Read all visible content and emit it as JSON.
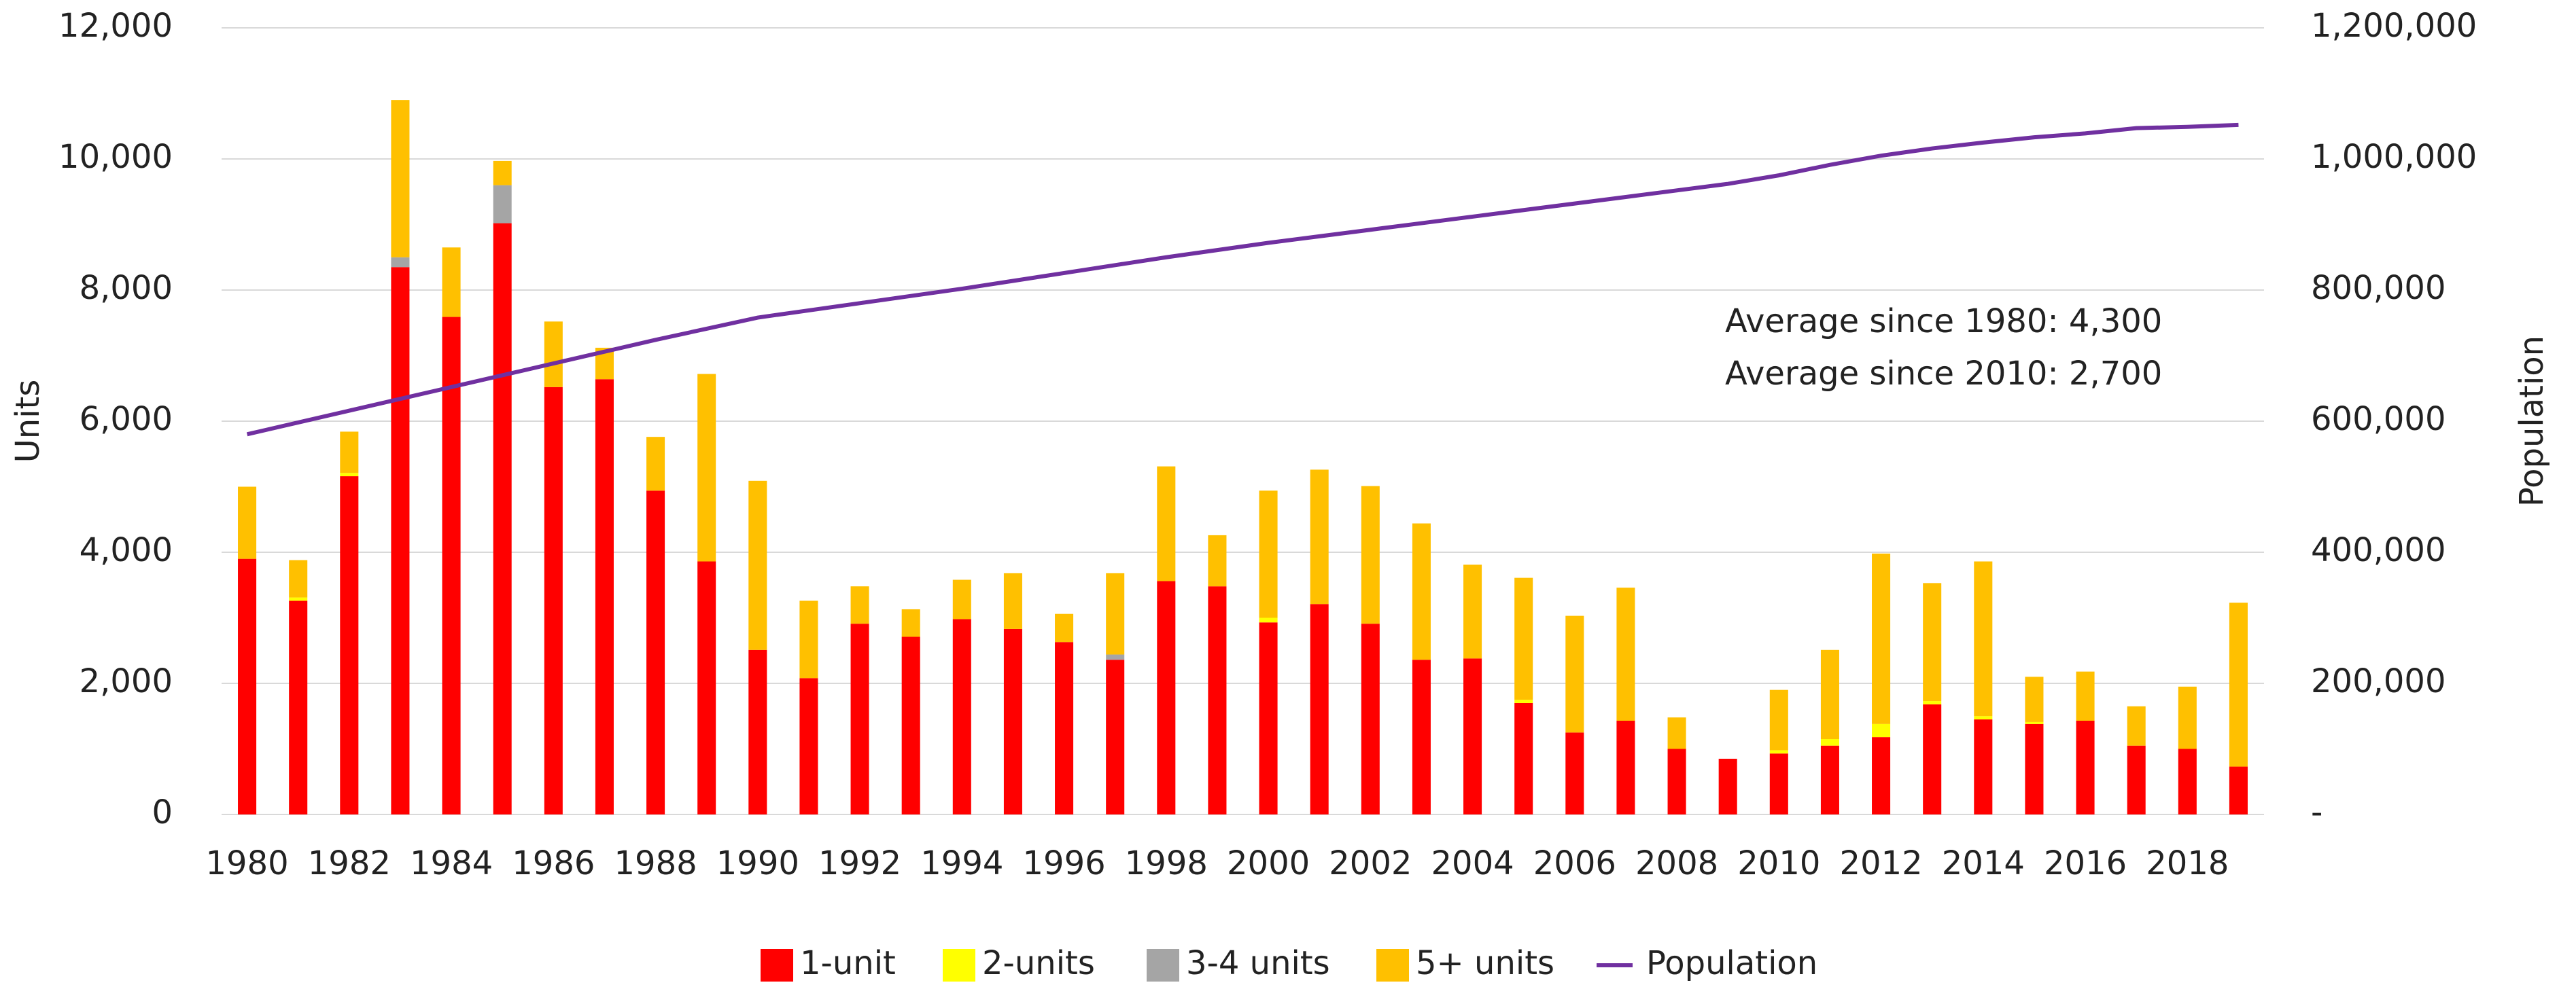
{
  "chart_data": {
    "type": "bar",
    "categories": [
      "1980",
      null,
      "1982",
      null,
      "1984",
      null,
      "1986",
      null,
      "1988",
      null,
      "1990",
      null,
      "1992",
      null,
      "1994",
      null,
      "1996",
      null,
      "1998",
      null,
      "2000",
      null,
      "2002",
      null,
      "2004",
      null,
      "2006",
      null,
      "2008",
      null,
      "2010",
      null,
      "2012",
      null,
      "2014",
      null,
      "2016",
      null,
      "2018",
      null
    ],
    "series": [
      {
        "name": "1-unit",
        "color": "#ff0000",
        "values": [
          3900,
          3260,
          5160,
          8350,
          7590,
          9020,
          6520,
          6640,
          4940,
          3860,
          2510,
          2080,
          2910,
          2710,
          2980,
          2830,
          2630,
          2360,
          3560,
          3480,
          2930,
          3210,
          2910,
          2360,
          2380,
          1700,
          1250,
          1430,
          1000,
          850,
          930,
          1050,
          1180,
          1680,
          1450,
          1380,
          1430,
          1050,
          1000,
          730
        ]
      },
      {
        "name": "2-units",
        "color": "#ffff00",
        "values": [
          0,
          50,
          50,
          0,
          0,
          0,
          0,
          0,
          0,
          0,
          0,
          0,
          0,
          0,
          0,
          0,
          0,
          0,
          0,
          0,
          70,
          0,
          0,
          0,
          0,
          50,
          0,
          0,
          0,
          0,
          50,
          100,
          200,
          50,
          50,
          30,
          0,
          0,
          0,
          0
        ]
      },
      {
        "name": "3-4 units",
        "color": "#a5a5a5",
        "values": [
          0,
          0,
          0,
          150,
          0,
          580,
          0,
          0,
          0,
          0,
          0,
          0,
          0,
          0,
          0,
          0,
          0,
          80,
          0,
          0,
          0,
          0,
          0,
          0,
          0,
          0,
          0,
          0,
          0,
          0,
          0,
          0,
          0,
          0,
          0,
          0,
          0,
          0,
          0,
          0
        ]
      },
      {
        "name": "5+ units",
        "color": "#ffc000",
        "values": [
          1100,
          570,
          630,
          2400,
          1060,
          370,
          1000,
          480,
          820,
          2860,
          2580,
          1180,
          570,
          420,
          600,
          850,
          430,
          1240,
          1750,
          780,
          1940,
          2050,
          2100,
          2080,
          1430,
          1860,
          1780,
          2030,
          480,
          0,
          920,
          1360,
          2600,
          1800,
          2360,
          690,
          750,
          600,
          950,
          2500
        ]
      },
      {
        "name": "Population",
        "color": "#7030a0",
        "axis": "y2",
        "line": true,
        "values": [
          580000,
          598000,
          616000,
          634000,
          652000,
          670000,
          688000,
          706000,
          724000,
          741000,
          758000,
          769000,
          780000,
          791000,
          802000,
          814000,
          826000,
          838000,
          850000,
          861000,
          872000,
          882000,
          892000,
          902000,
          912000,
          922000,
          932000,
          942000,
          952000,
          962000,
          975000,
          991000,
          1005000,
          1016000,
          1025000,
          1033000,
          1039000,
          1047000,
          1049000,
          1052000
        ]
      }
    ],
    "ylabel": "Units",
    "y2label": "Population",
    "ylim": [
      0,
      12000
    ],
    "yticks": [
      0,
      {
        "value": 2000,
        "label": "2,000"
      },
      {
        "value": 4000,
        "label": "4,000"
      },
      {
        "value": 6000,
        "label": "6,000"
      },
      {
        "value": 8000,
        "label": "8,000"
      },
      {
        "value": 10000,
        "label": "10,000"
      },
      {
        "value": 12000,
        "label": "12,000"
      }
    ],
    "y2lim": [
      0,
      1200000
    ],
    "y2ticks": [
      {
        "value": 0,
        "label": "-"
      },
      {
        "value": 200000,
        "label": "200,000"
      },
      {
        "value": 400000,
        "label": "400,000"
      },
      {
        "value": 600000,
        "label": "600,000"
      },
      {
        "value": 800000,
        "label": "800,000"
      },
      {
        "value": 1000000,
        "label": "1,000,000"
      },
      {
        "value": 1200000,
        "label": "1,200,000"
      }
    ],
    "annotations": [
      "Average since 1980: 4,300",
      "Average since 2010: 2,700"
    ],
    "grid": true,
    "stacked": true,
    "legend": "bottom"
  }
}
